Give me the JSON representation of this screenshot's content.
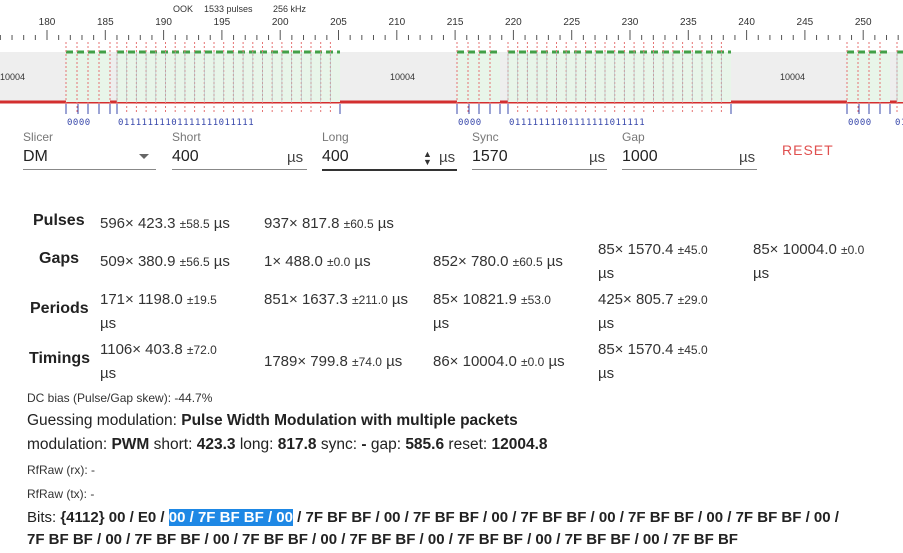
{
  "header": {
    "modulation": "OOK",
    "pulses": "1533 pulses",
    "rate": "256 kHz"
  },
  "ruler": {
    "ticks": [
      "180",
      "185",
      "190",
      "195",
      "200",
      "205",
      "210",
      "215",
      "220",
      "225",
      "230",
      "235",
      "240",
      "245",
      "250"
    ]
  },
  "band": {
    "gap_labels": [
      "10004",
      "10004",
      "10004",
      "10004"
    ]
  },
  "bit_rows": [
    "0000",
    "01111111101111111011111",
    "0000",
    "01111111101111111011111",
    "0000",
    "01"
  ],
  "slicer": {
    "slicer_label": "Slicer",
    "slicer_value": "DM",
    "short_label": "Short",
    "short_value": "400",
    "short_unit": "µs",
    "long_label": "Long",
    "long_value": "400",
    "long_unit": "µs",
    "sync_label": "Sync",
    "sync_value": "1570",
    "sync_unit": "µs",
    "gap_label": "Gap",
    "gap_value": "1000",
    "gap_unit": "µs",
    "reset_label": "RESET"
  },
  "stats": {
    "pulses": {
      "label": "Pulses",
      "cells": [
        {
          "main": "596× 423.3",
          "dev": "±58.5",
          "unit": "µs"
        },
        {
          "main": "937× 817.8",
          "dev": "±60.5",
          "unit": "µs"
        }
      ]
    },
    "gaps": {
      "label": "Gaps",
      "cells": [
        {
          "main": "509× 380.9",
          "dev": "±56.5",
          "unit": "µs"
        },
        {
          "main": "1× 488.0",
          "dev": "±0.0",
          "unit": "µs"
        },
        {
          "main": "852× 780.0",
          "dev": "±60.5",
          "unit": "µs"
        },
        {
          "main": "85× 1570.4",
          "dev": "±45.0",
          "unit": "µs"
        },
        {
          "main": "85× 10004.0",
          "dev": "±0.0",
          "unit": "µs"
        }
      ]
    },
    "periods": {
      "label": "Periods",
      "cells": [
        {
          "main": "171× 1198.0",
          "dev": "±19.5",
          "unit": "µs"
        },
        {
          "main": "851× 1637.3",
          "dev": "±211.0",
          "unit": "µs"
        },
        {
          "main": "85× 10821.9",
          "dev": "±53.0",
          "unit": "µs"
        },
        {
          "main": "425× 805.7",
          "dev": "±29.0",
          "unit": "µs"
        }
      ]
    },
    "timings": {
      "label": "Timings",
      "cells": [
        {
          "main": "1106× 403.8",
          "dev": "±72.0",
          "unit": "µs"
        },
        {
          "main": "1789× 799.8",
          "dev": "±74.0",
          "unit": "µs"
        },
        {
          "main": "86× 10004.0",
          "dev": "±0.0",
          "unit": "µs"
        },
        {
          "main": "85× 1570.4",
          "dev": "±45.0",
          "unit": "µs"
        }
      ]
    }
  },
  "analysis": {
    "dc_bias": "DC bias (Pulse/Gap skew): -44.7%",
    "guess_prefix": "Guessing modulation: ",
    "guess_value": "Pulse Width Modulation with multiple packets",
    "mod_prefix": "modulation: ",
    "mod_value": "PWM",
    "short_key": " short: ",
    "short_val": "423.3",
    "long_key": " long: ",
    "long_val": "817.8",
    "sync_key": " sync: ",
    "sync_val": "-",
    "gap_key": " gap: ",
    "gap_val": "585.6",
    "reset_key": " reset: ",
    "reset_val": "12004.8",
    "rfraw_rx": "RfRaw (rx): -",
    "rfraw_tx": "RfRaw (tx): -"
  },
  "bits": {
    "prefix": "Bits: ",
    "count": "{4112}",
    "pre": " 00 / E0 / ",
    "highlight": "00 / 7F BF BF / 00",
    "post": " / 7F BF BF / 00 / 7F BF BF / 00 / 7F BF BF / 00 / 7F BF BF / 00 / 7F BF BF / 00 /",
    "line2": "7F BF BF / 00 / 7F BF BF / 00 / 7F BF BF / 00 / 7F BF BF / 00 / 7F BF BF / 00 / 7F BF BF / 00 / 7F BF BF"
  },
  "colors": {
    "low_line": "#d32f2f",
    "high_line": "#43a047",
    "pulse_fill": "#e8f5e9",
    "gap_band": "#eeeeee",
    "reset": "#e0504f",
    "highlight": "#1e88e5",
    "bits_text": "#3949ab"
  }
}
